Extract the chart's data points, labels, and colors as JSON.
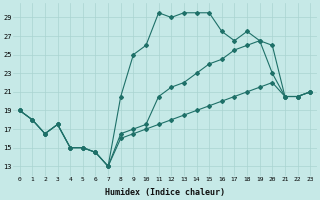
{
  "background_color": "#c6e9e7",
  "grid_color": "#aad4d1",
  "line_color": "#1e7068",
  "xlabel": "Humidex (Indice chaleur)",
  "xlim": [
    -0.5,
    23.5
  ],
  "ylim": [
    12,
    30.5
  ],
  "yticks": [
    13,
    15,
    17,
    19,
    21,
    23,
    25,
    27,
    29
  ],
  "xticks": [
    0,
    1,
    2,
    3,
    4,
    5,
    6,
    7,
    8,
    9,
    10,
    11,
    12,
    13,
    14,
    15,
    16,
    17,
    18,
    19,
    20,
    21,
    22,
    23
  ],
  "series1_x": [
    0,
    1,
    2,
    3,
    4,
    5,
    6,
    7,
    8,
    9,
    10,
    11,
    12,
    13,
    14,
    15,
    16,
    17,
    18,
    19,
    20,
    21,
    22,
    23
  ],
  "series1_y": [
    19,
    18,
    16.5,
    17.5,
    15,
    15,
    14.5,
    13,
    20.5,
    25,
    26,
    29.5,
    29,
    29.5,
    29.5,
    29.5,
    27.5,
    26.5,
    27.5,
    26.5,
    23,
    20.5,
    20.5,
    21
  ],
  "series2_x": [
    0,
    1,
    2,
    3,
    4,
    5,
    6,
    7,
    8,
    9,
    10,
    11,
    12,
    13,
    14,
    15,
    16,
    17,
    18,
    19,
    20,
    21,
    22,
    23
  ],
  "series2_y": [
    19,
    18,
    16.5,
    17.5,
    15,
    15,
    14.5,
    13,
    16.5,
    17,
    17.5,
    20.5,
    21.5,
    22,
    23,
    24,
    24.5,
    25.5,
    26,
    26.5,
    26,
    20.5,
    20.5,
    21
  ],
  "series3_x": [
    0,
    1,
    2,
    3,
    4,
    5,
    6,
    7,
    8,
    9,
    10,
    11,
    12,
    13,
    14,
    15,
    16,
    17,
    18,
    19,
    20,
    21,
    22,
    23
  ],
  "series3_y": [
    19,
    18,
    16.5,
    17.5,
    15,
    15,
    14.5,
    13,
    16,
    16.5,
    17,
    17.5,
    18,
    18.5,
    19,
    19.5,
    20,
    20.5,
    21,
    21.5,
    22,
    20.5,
    20.5,
    21
  ]
}
